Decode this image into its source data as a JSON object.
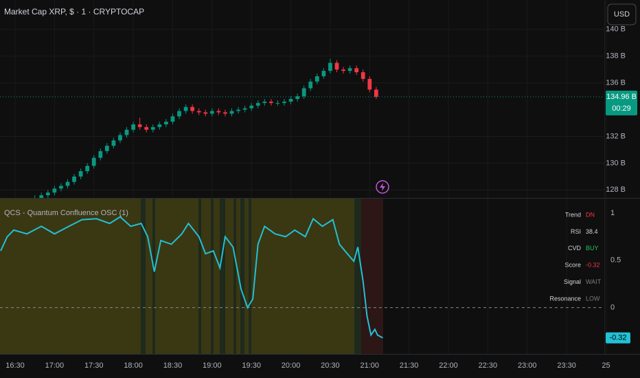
{
  "header": {
    "title": "Market Cap XRP, $ · 1 · CRYPTOCAP"
  },
  "toolbar": {
    "currency": "USD"
  },
  "chart_data": [
    {
      "type": "candlestick",
      "xlim": [
        978.5,
        1438.7
      ],
      "ylim": [
        127.4,
        142.2
      ],
      "yticks": [
        {
          "value": 128,
          "label": "128 B"
        },
        {
          "value": 130,
          "label": "130 B"
        },
        {
          "value": 132,
          "label": "132 B"
        },
        {
          "value": 136,
          "label": "136 B"
        },
        {
          "value": 138,
          "label": "138 B"
        },
        {
          "value": 140,
          "label": "140 B"
        }
      ],
      "grid": true,
      "up_color": "#089981",
      "down_color": "#f23645",
      "x": [
        1005,
        1010,
        1015,
        1020,
        1025,
        1030,
        1035,
        1040,
        1045,
        1050,
        1055,
        1060,
        1065,
        1070,
        1075,
        1080,
        1085,
        1090,
        1095,
        1100,
        1105,
        1110,
        1115,
        1120,
        1125,
        1130,
        1135,
        1140,
        1145,
        1150,
        1155,
        1160,
        1165,
        1170,
        1175,
        1180,
        1185,
        1190,
        1195,
        1200,
        1205,
        1210,
        1215,
        1220,
        1225,
        1230,
        1235,
        1240,
        1245,
        1250,
        1255,
        1260,
        1265
      ],
      "open": [
        127.3,
        127.4,
        127.6,
        127.8,
        128.1,
        128.3,
        128.6,
        129.0,
        129.4,
        129.8,
        130.4,
        130.9,
        131.3,
        131.7,
        132.1,
        132.5,
        132.9,
        132.7,
        132.5,
        132.7,
        132.9,
        133.1,
        133.5,
        133.9,
        134.2,
        133.9,
        133.8,
        133.7,
        133.9,
        133.8,
        133.7,
        133.9,
        134.0,
        134.1,
        134.3,
        134.5,
        134.6,
        134.5,
        134.5,
        134.6,
        134.8,
        135.0,
        135.6,
        136.1,
        136.5,
        136.9,
        137.5,
        137.0,
        136.9,
        137.1,
        136.8,
        136.3,
        135.5
      ],
      "high": [
        127.6,
        127.8,
        128.0,
        128.3,
        128.5,
        128.8,
        129.2,
        129.6,
        130.0,
        130.6,
        131.1,
        131.5,
        131.9,
        132.3,
        132.7,
        133.1,
        133.4,
        132.9,
        132.9,
        133.1,
        133.3,
        133.7,
        134.1,
        134.4,
        134.4,
        134.1,
        134.0,
        134.1,
        134.1,
        134.0,
        134.1,
        134.2,
        134.3,
        134.5,
        134.7,
        134.8,
        134.8,
        134.7,
        134.8,
        135.0,
        135.2,
        135.8,
        136.3,
        136.7,
        137.1,
        137.8,
        137.7,
        137.2,
        137.3,
        137.3,
        137.0,
        136.5,
        135.7
      ],
      "low": [
        127.1,
        127.2,
        127.4,
        127.6,
        127.9,
        128.1,
        128.4,
        128.8,
        129.2,
        129.6,
        130.2,
        130.7,
        131.1,
        131.5,
        131.9,
        132.3,
        132.5,
        132.3,
        132.3,
        132.5,
        132.7,
        132.9,
        133.3,
        133.7,
        133.7,
        133.6,
        133.5,
        133.5,
        133.6,
        133.5,
        133.5,
        133.7,
        133.8,
        133.9,
        134.1,
        134.3,
        134.3,
        134.3,
        134.3,
        134.4,
        134.6,
        134.8,
        135.4,
        135.9,
        136.3,
        136.7,
        136.8,
        136.7,
        136.7,
        136.6,
        136.1,
        135.3,
        134.8
      ],
      "close": [
        127.4,
        127.6,
        127.8,
        128.1,
        128.3,
        128.6,
        129.0,
        129.4,
        129.8,
        130.4,
        130.9,
        131.3,
        131.7,
        132.1,
        132.5,
        132.9,
        132.7,
        132.5,
        132.7,
        132.9,
        133.1,
        133.5,
        133.9,
        134.2,
        133.9,
        133.8,
        133.7,
        133.9,
        133.8,
        133.7,
        133.9,
        134.0,
        134.1,
        134.3,
        134.5,
        134.6,
        134.5,
        134.5,
        134.6,
        134.8,
        135.0,
        135.6,
        136.1,
        136.5,
        136.9,
        137.5,
        137.0,
        136.9,
        137.1,
        136.8,
        136.3,
        135.5,
        134.96
      ],
      "last_price": {
        "value": 134.96,
        "label": "134.96 B"
      },
      "countdown": "00:29",
      "last_color": "#089981"
    },
    {
      "type": "line",
      "title": "QCS - Quantum Confluence OSC  (1)",
      "xlim": [
        978.5,
        1438.7
      ],
      "xticks": [
        {
          "value": 990,
          "label": "16:30"
        },
        {
          "value": 1020,
          "label": "17:00"
        },
        {
          "value": 1050,
          "label": "17:30"
        },
        {
          "value": 1080,
          "label": "18:00"
        },
        {
          "value": 1110,
          "label": "18:30"
        },
        {
          "value": 1140,
          "label": "19:00"
        },
        {
          "value": 1170,
          "label": "19:30"
        },
        {
          "value": 1200,
          "label": "20:00"
        },
        {
          "value": 1230,
          "label": "20:30"
        },
        {
          "value": 1260,
          "label": "21:00"
        },
        {
          "value": 1290,
          "label": "21:30"
        },
        {
          "value": 1320,
          "label": "22:00"
        },
        {
          "value": 1350,
          "label": "22:30"
        },
        {
          "value": 1380,
          "label": "23:00"
        },
        {
          "value": 1410,
          "label": "23:30"
        },
        {
          "value": 1440,
          "label": "25"
        }
      ],
      "ylim": [
        -0.49,
        1.16
      ],
      "yticks": [
        0,
        0.5,
        1
      ],
      "reference_line": 0,
      "color": "#22c1d6",
      "x": [
        979,
        984,
        989,
        999,
        1010,
        1020,
        1031,
        1041,
        1052,
        1062,
        1070,
        1078,
        1086,
        1091,
        1096,
        1101,
        1109,
        1117,
        1122,
        1130,
        1135,
        1141,
        1146,
        1150,
        1156,
        1162,
        1167,
        1171,
        1175,
        1180,
        1188,
        1196,
        1203,
        1211,
        1217,
        1224,
        1232,
        1237,
        1243,
        1248,
        1251,
        1255,
        1258,
        1261,
        1264,
        1266,
        1270
      ],
      "values": [
        0.6,
        0.75,
        0.82,
        0.78,
        0.86,
        0.78,
        0.86,
        0.93,
        0.94,
        0.89,
        0.96,
        0.86,
        0.89,
        0.75,
        0.38,
        0.71,
        0.67,
        0.78,
        0.89,
        0.75,
        0.57,
        0.6,
        0.42,
        0.75,
        0.64,
        0.2,
        0.0,
        0.09,
        0.67,
        0.86,
        0.78,
        0.75,
        0.82,
        0.75,
        0.94,
        0.86,
        0.93,
        0.67,
        0.57,
        0.49,
        0.64,
        0.28,
        -0.09,
        -0.29,
        -0.23,
        -0.29,
        -0.32
      ],
      "last_value": -0.32
    }
  ],
  "indicator_table": {
    "rows": [
      {
        "label": "Trend",
        "value": "DN",
        "color": "#f23645"
      },
      {
        "label": "RSI",
        "value": "38.4",
        "color": "#d1d4dc"
      },
      {
        "label": "CVD",
        "value": "BUY",
        "color": "#22c55e"
      },
      {
        "label": "Score",
        "value": "-0.32",
        "color": "#f23645"
      },
      {
        "label": "Signal",
        "value": "WAIT",
        "color": "#787b86"
      },
      {
        "label": "Resonance",
        "value": "LOW",
        "color": "#787b86"
      }
    ]
  }
}
